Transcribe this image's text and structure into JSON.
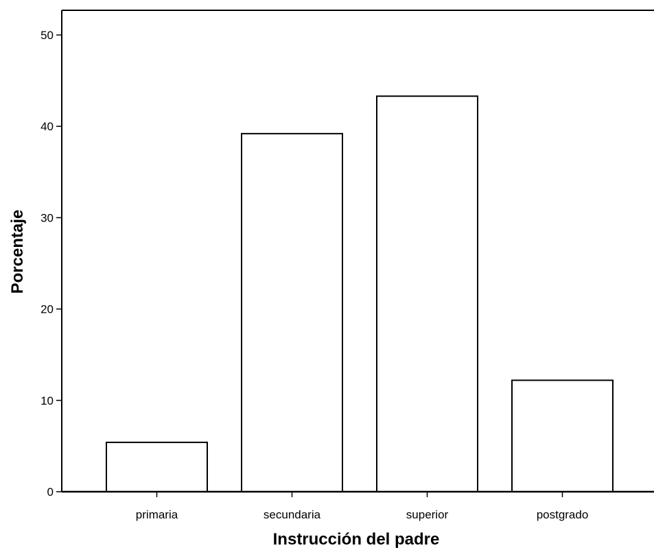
{
  "chart_data": {
    "type": "bar",
    "categories": [
      "primaria",
      "secundaria",
      "superior",
      "postgrado"
    ],
    "values": [
      5.4,
      39.2,
      43.3,
      12.2
    ],
    "xlabel": "Instrucción del padre",
    "ylabel": "Porcentaje",
    "ylim": [
      0,
      50
    ],
    "yticks": [
      0,
      10,
      20,
      30,
      40,
      50
    ],
    "grid": false,
    "legend": "none",
    "bar_fill": "#ffffff",
    "bar_stroke": "#000000"
  }
}
